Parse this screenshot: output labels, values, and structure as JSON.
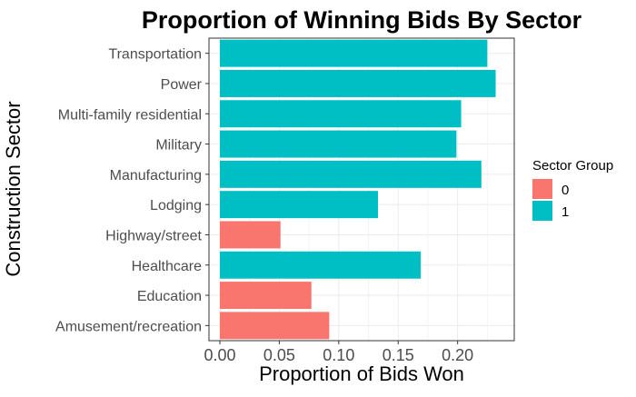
{
  "chart_data": {
    "type": "bar",
    "orientation": "horizontal",
    "title": "Proportion of Winning Bids By Sector",
    "xlabel": "Proportion of Bids Won",
    "ylabel": "Construction Sector",
    "xlim": [
      0,
      0.24
    ],
    "x_ticks": [
      "0.00",
      "0.05",
      "0.10",
      "0.15",
      "0.20"
    ],
    "x_tick_values": [
      0,
      0.05,
      0.1,
      0.15,
      0.2
    ],
    "grid": true,
    "legend": {
      "title": "Sector Group",
      "placement": "right",
      "entries": [
        {
          "label": "0",
          "color": "#F8766D"
        },
        {
          "label": "1",
          "color": "#00BFC4"
        }
      ]
    },
    "categories": [
      "Transportation",
      "Power",
      "Multi-family residential",
      "Military",
      "Manufacturing",
      "Lodging",
      "Highway/street",
      "Healthcare",
      "Education",
      "Amusement/recreation"
    ],
    "values": [
      0.225,
      0.232,
      0.203,
      0.199,
      0.22,
      0.133,
      0.051,
      0.169,
      0.077,
      0.092
    ],
    "groups": [
      "1",
      "1",
      "1",
      "1",
      "1",
      "1",
      "0",
      "1",
      "0",
      "0"
    ]
  }
}
